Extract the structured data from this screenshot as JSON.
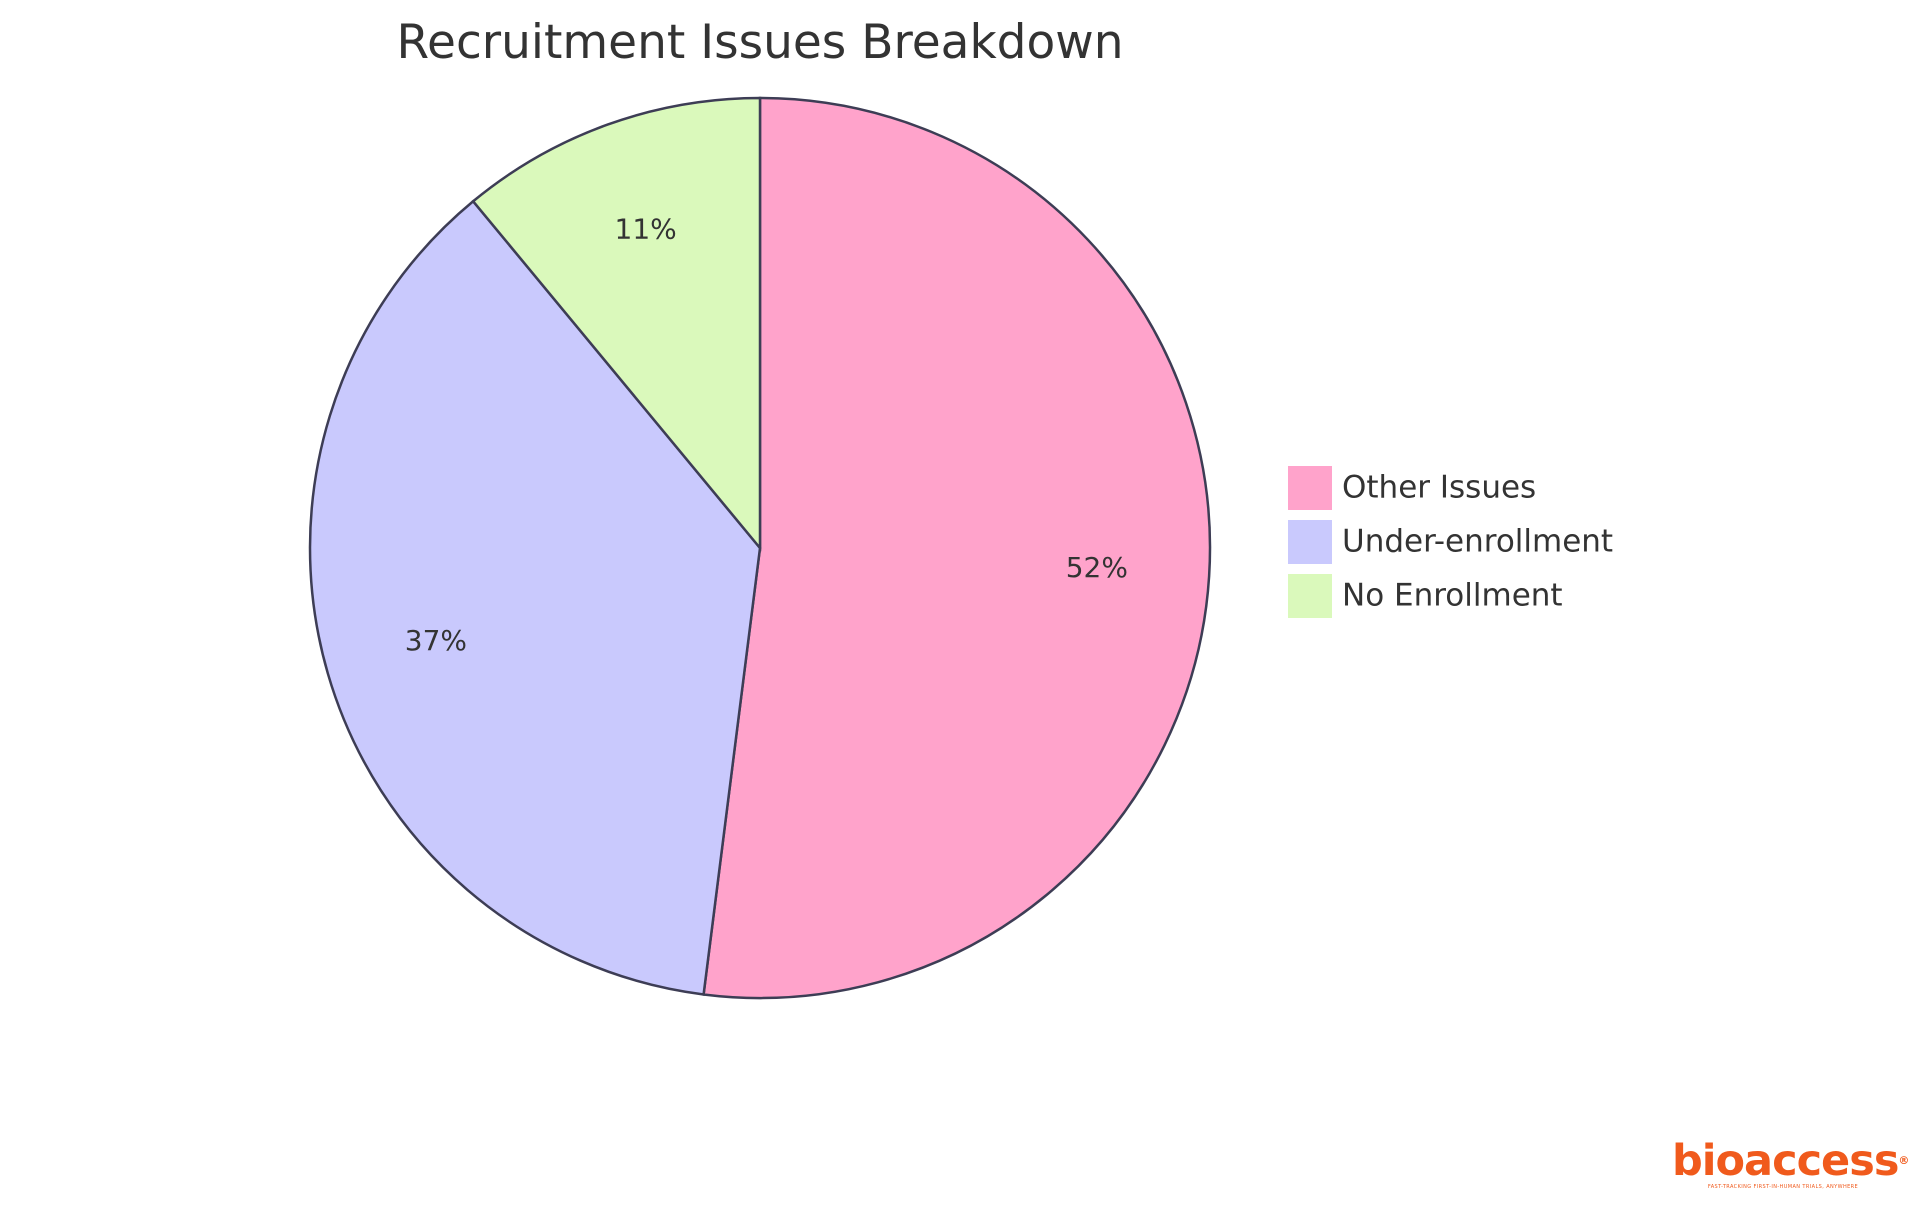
{
  "chart_data": {
    "type": "pie",
    "title": "Recruitment Issues Breakdown",
    "slices": [
      {
        "label": "Other Issues",
        "value": 52,
        "display": "52%",
        "color": "#ffa3cb"
      },
      {
        "label": "Under-enrollment",
        "value": 37,
        "display": "37%",
        "color": "#c9c9fd"
      },
      {
        "label": "No Enrollment",
        "value": 11,
        "display": "11%",
        "color": "#daf9bb"
      }
    ],
    "legend": {
      "position": "right",
      "items": [
        "Other Issues",
        "Under-enrollment",
        "No Enrollment"
      ]
    },
    "start_angle": "top",
    "direction": "clockwise"
  },
  "branding": {
    "logo_word": "bioaccess",
    "logo_mark": "®",
    "tagline": "FAST-TRACKING FIRST-IN-HUMAN TRIALS, ANYWHERE",
    "color": "#f05a1c"
  }
}
